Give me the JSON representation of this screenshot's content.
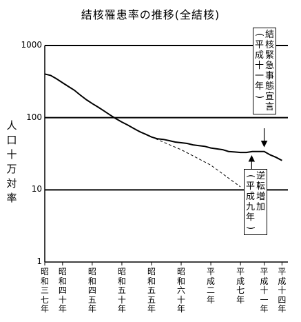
{
  "chart_data": {
    "type": "line",
    "title": "結核罹患率の推移(全結核)",
    "ylabel": "人口十万対率",
    "yscale": "log",
    "ylim": [
      1,
      1000
    ],
    "yticks": [
      "1",
      "10",
      "100",
      "1000"
    ],
    "xlim": [
      1962,
      2003
    ],
    "x_tick_labels": [
      {
        "x": 1962,
        "label": "昭和三七年"
      },
      {
        "x": 1965,
        "label": "昭和四十年"
      },
      {
        "x": 1970,
        "label": "昭和四五年"
      },
      {
        "x": 1975,
        "label": "昭和五十年"
      },
      {
        "x": 1980,
        "label": "昭和五五年"
      },
      {
        "x": 1985,
        "label": "昭和六十年"
      },
      {
        "x": 1990,
        "label": "平成二年"
      },
      {
        "x": 1995,
        "label": "平成七年"
      },
      {
        "x": 1999,
        "label": "平成十一年"
      },
      {
        "x": 2002,
        "label": "平成十四年"
      }
    ],
    "series": [
      {
        "style": "solid",
        "x": [
          1962,
          1963,
          1964,
          1965,
          1966,
          1967,
          1968,
          1969,
          1970,
          1971,
          1972,
          1973,
          1974,
          1975,
          1976,
          1977,
          1978,
          1979,
          1980,
          1981,
          1982,
          1983,
          1984,
          1985,
          1986,
          1987,
          1988,
          1989,
          1990,
          1991,
          1992,
          1993,
          1994,
          1995,
          1996,
          1997,
          1998,
          1999,
          2000,
          2001,
          2002
        ],
        "y": [
          403,
          385,
          345,
          305,
          270,
          240,
          205,
          178,
          157,
          140,
          124,
          109,
          97,
          87,
          79,
          71,
          64,
          59,
          54,
          51,
          50,
          48,
          46,
          45,
          44,
          42,
          41,
          40,
          38,
          37,
          36,
          34,
          33.5,
          33,
          33,
          33.9,
          33.9,
          33.9,
          30.5,
          28.2,
          25.5
        ]
      },
      {
        "style": "dashed",
        "x": [
          1977,
          1980,
          1985,
          1990,
          1995
        ],
        "y": [
          71,
          54,
          36,
          22,
          11
        ]
      }
    ],
    "annotations": [
      {
        "text": "結核緊急事態宣言",
        "sub": "(平成十一年)",
        "x": 1999
      },
      {
        "text": "逆転増加",
        "sub": "(平成九年)",
        "x": 1997
      }
    ]
  }
}
